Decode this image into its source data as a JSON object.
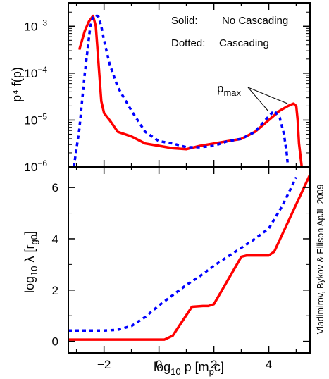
{
  "chart_data": [
    {
      "type": "line",
      "panel": "top",
      "xlim": [
        -3.3,
        5.5
      ],
      "ylim_log10": [
        -6,
        -2.5
      ],
      "yscale": "log",
      "ylabel": "p⁴ f(p)",
      "ytick_values": [
        -6,
        -5,
        -4,
        -3
      ],
      "ytick_base": "10",
      "ytick_exponents": [
        "−6",
        "−5",
        "−4",
        "−3"
      ],
      "legend": {
        "line1_label": "Solid:",
        "line1_text": "No Cascading",
        "line2_label": "Dotted:",
        "line2_text": "Cascading",
        "placement": "top-right"
      },
      "annotation": {
        "text_main": "p",
        "text_sub": "max"
      },
      "series": [
        {
          "name": "No Cascading",
          "style": "solid",
          "color": "#ff0000",
          "x": [
            -2.9,
            -2.7,
            -2.55,
            -2.4,
            -2.3,
            -2.2,
            -2.1,
            -2.0,
            -1.8,
            -1.5,
            -1.0,
            -0.5,
            0.0,
            0.5,
            1.0,
            1.5,
            2.0,
            2.5,
            3.0,
            3.5,
            4.0,
            4.4,
            4.7,
            4.9,
            5.0,
            5.05,
            5.1,
            5.2
          ],
          "log10_y": [
            -3.5,
            -3.1,
            -2.9,
            -2.78,
            -3.0,
            -3.8,
            -4.6,
            -4.85,
            -5.0,
            -5.25,
            -5.35,
            -5.5,
            -5.55,
            -5.6,
            -5.62,
            -5.55,
            -5.5,
            -5.45,
            -5.4,
            -5.25,
            -5.0,
            -4.8,
            -4.7,
            -4.65,
            -4.7,
            -5.0,
            -5.5,
            -6.0
          ]
        },
        {
          "name": "Cascading",
          "style": "dotted",
          "color": "#0000ff",
          "x": [
            -3.1,
            -2.9,
            -2.7,
            -2.5,
            -2.4,
            -2.3,
            -2.2,
            -2.1,
            -2.0,
            -1.8,
            -1.5,
            -1.0,
            -0.5,
            0.0,
            0.5,
            1.0,
            1.5,
            2.0,
            2.5,
            3.0,
            3.5,
            3.8,
            4.0,
            4.2,
            4.4,
            4.55,
            4.65,
            4.7
          ],
          "log10_y": [
            -6.0,
            -5.2,
            -4.0,
            -3.0,
            -2.8,
            -2.76,
            -2.8,
            -3.0,
            -3.3,
            -3.8,
            -4.3,
            -4.8,
            -5.25,
            -5.45,
            -5.5,
            -5.58,
            -5.58,
            -5.55,
            -5.45,
            -5.4,
            -5.25,
            -5.05,
            -4.92,
            -4.8,
            -4.95,
            -5.3,
            -5.7,
            -6.0
          ]
        }
      ]
    },
    {
      "type": "line",
      "panel": "bottom",
      "xlim": [
        -3.3,
        5.5
      ],
      "ylim": [
        -0.45,
        6.8
      ],
      "xlabel_main": "log",
      "xlabel_sub": "10",
      "xlabel_rest": " p  [m",
      "xlabel_sub2": "p",
      "xlabel_end": "c]",
      "ylabel_main": "log",
      "ylabel_sub": "10",
      "ylabel_rest": " λ  [r",
      "ylabel_sub2": "g0",
      "ylabel_end": "]",
      "xtick_values": [
        -2,
        0,
        2,
        4
      ],
      "xtick_labels": [
        "−2",
        "0",
        "2",
        "4"
      ],
      "ytick_values": [
        0,
        2,
        4,
        6
      ],
      "ytick_labels": [
        "0",
        "2",
        "4",
        "6"
      ],
      "series": [
        {
          "name": "No Cascading",
          "style": "solid",
          "color": "#ff0000",
          "x": [
            -3.3,
            0.2,
            0.5,
            1.2,
            1.6,
            1.8,
            2.0,
            3.0,
            3.2,
            4.0,
            4.2,
            5.5
          ],
          "y": [
            0.07,
            0.07,
            0.22,
            1.35,
            1.38,
            1.38,
            1.45,
            3.3,
            3.35,
            3.35,
            3.5,
            6.5
          ]
        },
        {
          "name": "Cascading",
          "style": "dotted",
          "color": "#0000ff",
          "x": [
            -3.3,
            -2.0,
            -1.5,
            -1.0,
            -0.5,
            0.0,
            0.5,
            1.0,
            1.5,
            2.0,
            2.5,
            3.0,
            3.5,
            4.0,
            4.5,
            5.0
          ],
          "y": [
            0.42,
            0.42,
            0.45,
            0.6,
            0.95,
            1.4,
            1.8,
            2.2,
            2.55,
            2.95,
            3.3,
            3.65,
            4.0,
            4.4,
            5.3,
            6.4
          ]
        }
      ]
    }
  ],
  "credit": "Vladimirov, Bykov & Ellison ApJL 2009"
}
